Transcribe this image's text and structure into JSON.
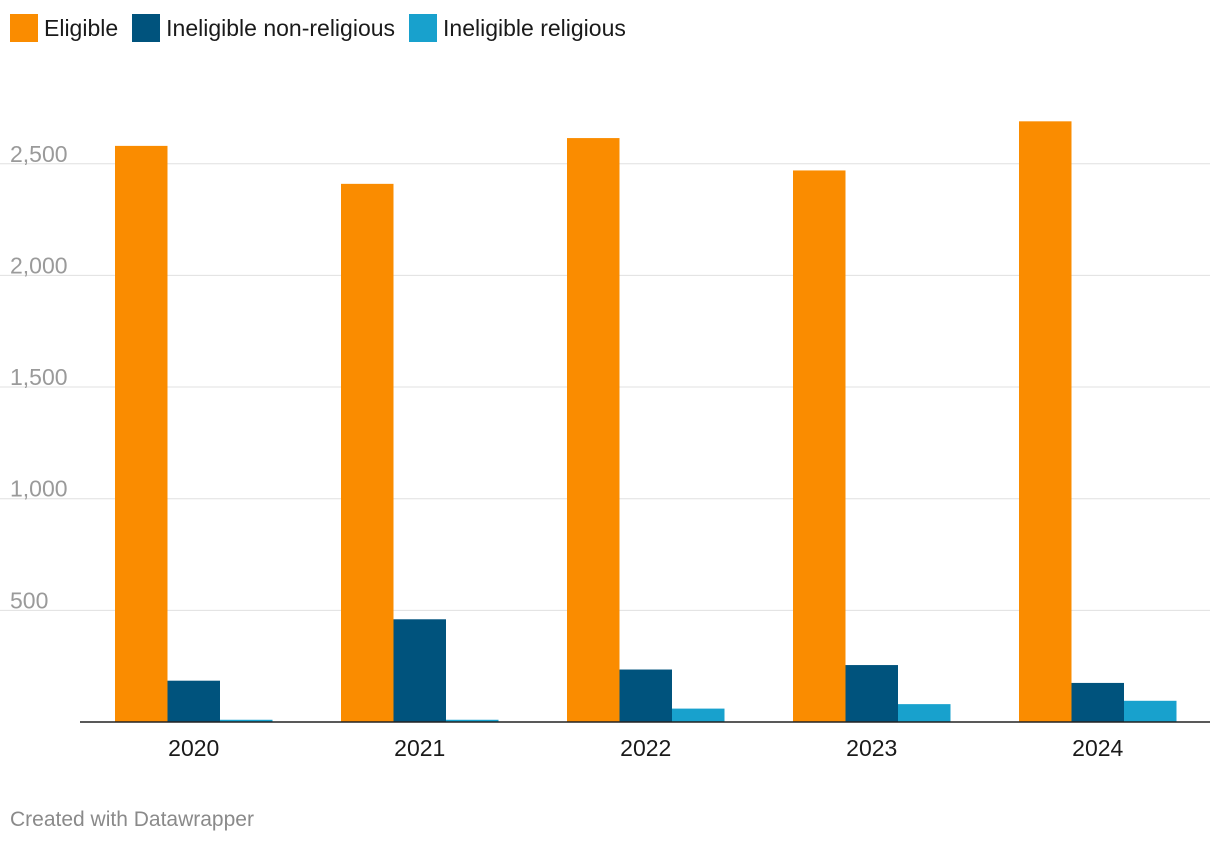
{
  "chart_data": {
    "type": "bar",
    "categories": [
      "2020",
      "2021",
      "2022",
      "2023",
      "2024"
    ],
    "series": [
      {
        "name": "Eligible",
        "color": "#fa8c00",
        "values": [
          2580,
          2410,
          2615,
          2470,
          2690
        ]
      },
      {
        "name": "Ineligible non-religious",
        "color": "#00537d",
        "values": [
          185,
          460,
          235,
          255,
          175
        ]
      },
      {
        "name": "Ineligible religious",
        "color": "#18a1cd",
        "values": [
          10,
          10,
          60,
          80,
          95
        ]
      }
    ],
    "yticks": [
      500,
      1000,
      1500,
      2000,
      2500
    ],
    "ytick_labels": [
      "500",
      "1,000",
      "1,500",
      "2,000",
      "2,500"
    ],
    "ylim": [
      0,
      2800
    ],
    "grid": true,
    "legend_position": "top-left"
  },
  "footer": {
    "credit": "Created with Datawrapper"
  }
}
